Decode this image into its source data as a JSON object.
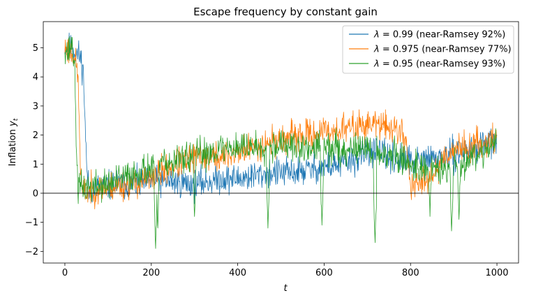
{
  "chart_data": {
    "type": "line",
    "title": "Escape frequency by constant gain",
    "xlabel": "t",
    "ylabel": "Inflation y_t",
    "ylabel_main": "Inflation ",
    "ylabel_var": "y",
    "ylabel_sub": "t",
    "xlim": [
      -50,
      1050
    ],
    "ylim": [
      -2.4,
      5.9
    ],
    "xticks": [
      0,
      200,
      400,
      600,
      800,
      1000
    ],
    "yticks": [
      -2,
      -1,
      0,
      1,
      2,
      3,
      4,
      5
    ],
    "hline": 0,
    "grid": false,
    "legend_position": "top-right",
    "series": [
      {
        "name": "λ = 0.99 (near-Ramsey 92%)",
        "legend_symbol": "λ",
        "legend_rest": " = 0.99 (near-Ramsey 92%)",
        "color": "#1f77b4",
        "seed": 11,
        "noise": 0.32,
        "anchors": [
          [
            0,
            5.1
          ],
          [
            10,
            5.0
          ],
          [
            20,
            4.9
          ],
          [
            35,
            4.7
          ],
          [
            42,
            4.3
          ],
          [
            45,
            3.3
          ],
          [
            50,
            1.0
          ],
          [
            55,
            0.1
          ],
          [
            80,
            0.2
          ],
          [
            120,
            0.3
          ],
          [
            160,
            0.3
          ],
          [
            200,
            0.4
          ],
          [
            250,
            0.4
          ],
          [
            300,
            0.3
          ],
          [
            330,
            0.4
          ],
          [
            360,
            0.5
          ],
          [
            400,
            0.5
          ],
          [
            440,
            0.6
          ],
          [
            480,
            0.7
          ],
          [
            520,
            0.7
          ],
          [
            560,
            0.8
          ],
          [
            600,
            0.9
          ],
          [
            640,
            1.0
          ],
          [
            680,
            1.2
          ],
          [
            700,
            1.5
          ],
          [
            720,
            1.4
          ],
          [
            740,
            1.3
          ],
          [
            760,
            1.2
          ],
          [
            790,
            1.1
          ],
          [
            820,
            1.1
          ],
          [
            860,
            1.2
          ],
          [
            900,
            1.3
          ],
          [
            940,
            1.5
          ],
          [
            970,
            1.7
          ],
          [
            1000,
            1.8
          ]
        ]
      },
      {
        "name": "λ = 0.975 (near-Ramsey 77%)",
        "legend_symbol": "λ",
        "legend_rest": " = 0.975 (near-Ramsey 77%)",
        "color": "#ff7f0e",
        "seed": 23,
        "noise": 0.32,
        "anchors": [
          [
            0,
            5.0
          ],
          [
            10,
            4.9
          ],
          [
            20,
            4.8
          ],
          [
            30,
            4.1
          ],
          [
            36,
            1.0
          ],
          [
            40,
            0.0
          ],
          [
            60,
            0.1
          ],
          [
            100,
            0.2
          ],
          [
            150,
            0.3
          ],
          [
            200,
            0.5
          ],
          [
            240,
            0.9
          ],
          [
            280,
            1.1
          ],
          [
            320,
            1.3
          ],
          [
            360,
            1.2
          ],
          [
            400,
            1.4
          ],
          [
            440,
            1.6
          ],
          [
            480,
            1.8
          ],
          [
            520,
            1.9
          ],
          [
            560,
            2.0
          ],
          [
            600,
            2.1
          ],
          [
            640,
            2.2
          ],
          [
            680,
            2.3
          ],
          [
            710,
            2.4
          ],
          [
            740,
            2.3
          ],
          [
            770,
            2.2
          ],
          [
            790,
            1.8
          ],
          [
            800,
            0.3
          ],
          [
            810,
            0.2
          ],
          [
            830,
            0.5
          ],
          [
            860,
            0.8
          ],
          [
            880,
            1.3
          ],
          [
            900,
            1.5
          ],
          [
            930,
            1.6
          ],
          [
            960,
            1.7
          ],
          [
            1000,
            1.9
          ]
        ]
      },
      {
        "name": "λ = 0.95 (near-Ramsey 93%)",
        "legend_symbol": "λ",
        "legend_rest": " = 0.95 (near-Ramsey 93%)",
        "color": "#2ca02c",
        "seed": 37,
        "noise": 0.34,
        "anchors": [
          [
            0,
            5.1
          ],
          [
            8,
            4.8
          ],
          [
            15,
            5.2
          ],
          [
            22,
            4.6
          ],
          [
            26,
            2.0
          ],
          [
            30,
            0.2
          ],
          [
            60,
            0.2
          ],
          [
            100,
            0.3
          ],
          [
            150,
            0.6
          ],
          [
            200,
            0.9
          ],
          [
            250,
            1.1
          ],
          [
            300,
            1.3
          ],
          [
            350,
            1.5
          ],
          [
            400,
            1.6
          ],
          [
            440,
            1.6
          ],
          [
            480,
            1.7
          ],
          [
            520,
            1.6
          ],
          [
            560,
            1.5
          ],
          [
            600,
            1.6
          ],
          [
            640,
            1.5
          ],
          [
            680,
            1.6
          ],
          [
            720,
            1.4
          ],
          [
            760,
            1.3
          ],
          [
            800,
            1.0
          ],
          [
            830,
            0.9
          ],
          [
            860,
            0.8
          ],
          [
            890,
            0.8
          ],
          [
            920,
            1.1
          ],
          [
            960,
            1.4
          ],
          [
            1000,
            1.8
          ]
        ],
        "spikes": [
          [
            210,
            -1.9
          ],
          [
            215,
            -1.2
          ],
          [
            300,
            -0.8
          ],
          [
            470,
            -1.2
          ],
          [
            595,
            -1.1
          ],
          [
            718,
            -1.7
          ],
          [
            845,
            -0.8
          ],
          [
            895,
            -1.3
          ],
          [
            912,
            -0.9
          ]
        ]
      }
    ]
  }
}
